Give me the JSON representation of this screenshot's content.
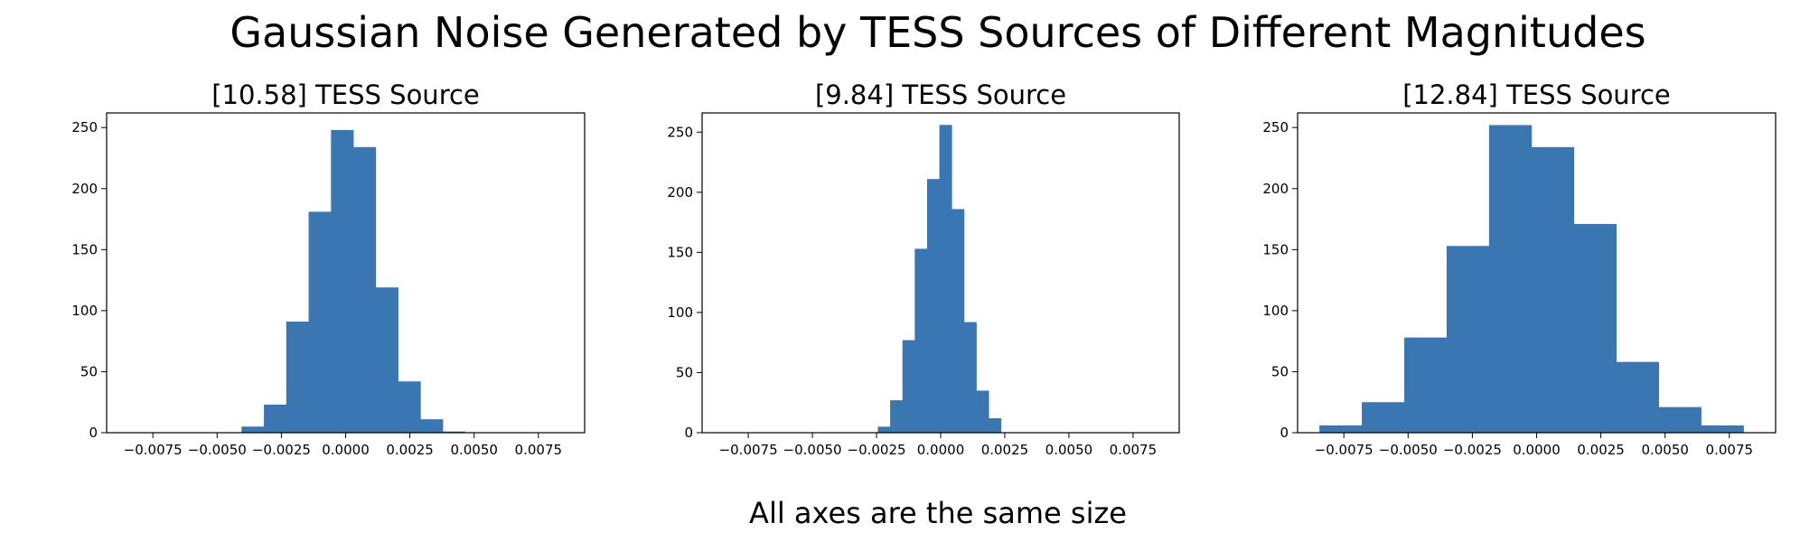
{
  "figure": {
    "suptitle": "Gaussian Noise Generated by TESS Sources of Different Magnitudes",
    "caption": "All axes are the same size",
    "bar_color": "#3a76b1"
  },
  "chart_data": [
    {
      "type": "bar",
      "title": "[10.58] TESS Source",
      "xlabel": "",
      "ylabel": "",
      "xlim": [
        -0.0093,
        0.0093
      ],
      "ylim": [
        0,
        262
      ],
      "xticks": [
        -0.0075,
        -0.005,
        -0.0025,
        0.0,
        0.0025,
        0.005,
        0.0075
      ],
      "xtick_labels": [
        "−0.0075",
        "−0.0050",
        "−0.0025",
        "0.0000",
        "0.0025",
        "0.0050",
        "0.0075"
      ],
      "yticks": [
        0,
        50,
        100,
        150,
        200,
        250
      ],
      "ytick_labels": [
        "0",
        "50",
        "100",
        "150",
        "200",
        "250"
      ],
      "bin_edges": [
        -0.00405,
        -0.00318,
        -0.00231,
        -0.00144,
        -0.00057,
        0.0003,
        0.00117,
        0.00204,
        0.00291,
        0.00378,
        0.00465
      ],
      "values": [
        5,
        23,
        91,
        181,
        248,
        234,
        119,
        42,
        11,
        1
      ],
      "grid": false
    },
    {
      "type": "bar",
      "title": "[9.84] TESS Source",
      "xlabel": "",
      "ylabel": "",
      "xlim": [
        -0.0093,
        0.0093
      ],
      "ylim": [
        0,
        266
      ],
      "xticks": [
        -0.0075,
        -0.005,
        -0.0025,
        0.0,
        0.0025,
        0.005,
        0.0075
      ],
      "xtick_labels": [
        "−0.0075",
        "−0.0050",
        "−0.0025",
        "0.0000",
        "0.0025",
        "0.0050",
        "0.0075"
      ],
      "yticks": [
        0,
        50,
        100,
        150,
        200,
        250
      ],
      "ytick_labels": [
        "0",
        "50",
        "100",
        "150",
        "200",
        "250"
      ],
      "bin_edges": [
        -0.00245,
        -0.00197,
        -0.00149,
        -0.00101,
        -0.00053,
        -5e-05,
        0.00043,
        0.00091,
        0.00139,
        0.00187,
        0.00235
      ],
      "values": [
        5,
        27,
        77,
        153,
        211,
        256,
        186,
        92,
        35,
        12
      ],
      "grid": false
    },
    {
      "type": "bar",
      "title": "[12.84] TESS Source",
      "xlabel": "",
      "ylabel": "",
      "xlim": [
        -0.0093,
        0.0093
      ],
      "ylim": [
        0,
        262
      ],
      "xticks": [
        -0.0075,
        -0.005,
        -0.0025,
        0.0,
        0.0025,
        0.005,
        0.0075
      ],
      "xtick_labels": [
        "−0.0075",
        "−0.0050",
        "−0.0025",
        "0.0000",
        "0.0025",
        "0.0050",
        "0.0075"
      ],
      "yticks": [
        0,
        50,
        100,
        150,
        200,
        250
      ],
      "ytick_labels": [
        "0",
        "50",
        "100",
        "150",
        "200",
        "250"
      ],
      "bin_edges": [
        -0.00845,
        -0.0068,
        -0.00515,
        -0.0035,
        -0.00185,
        -0.0002,
        0.00145,
        0.0031,
        0.00475,
        0.0064,
        0.00805
      ],
      "values": [
        6,
        25,
        78,
        153,
        252,
        234,
        171,
        58,
        21,
        6
      ],
      "grid": false
    }
  ]
}
